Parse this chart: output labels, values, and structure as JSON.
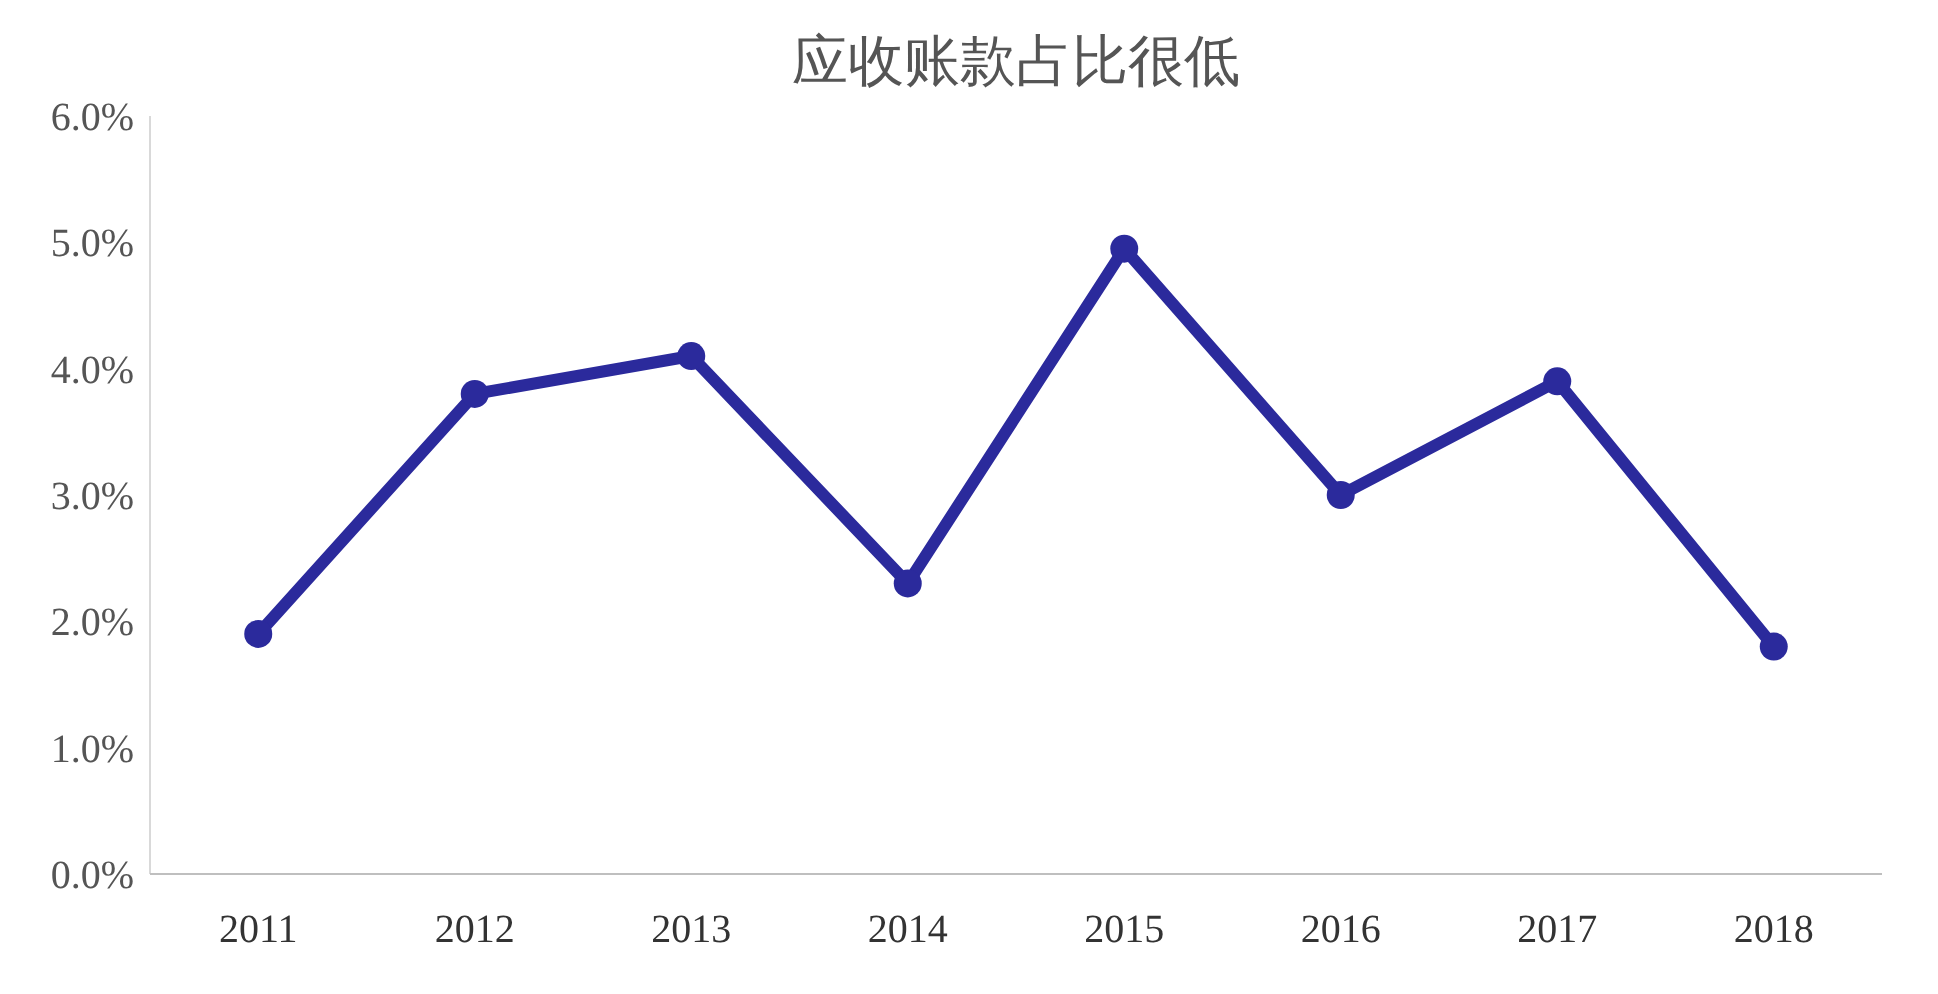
{
  "chart_data": {
    "type": "line",
    "title": "应收账款占比很低",
    "categories": [
      "2011",
      "2012",
      "2013",
      "2014",
      "2015",
      "2016",
      "2017",
      "2018"
    ],
    "series": [
      {
        "color": "#2b2a9c",
        "values": [
          1.9,
          3.8,
          4.1,
          2.3,
          4.95,
          3.0,
          3.9,
          1.8
        ]
      }
    ],
    "ylim": [
      0,
      6
    ],
    "yticks": [
      {
        "value": 0,
        "label": "0.0%"
      },
      {
        "value": 1,
        "label": "1.0%"
      },
      {
        "value": 2,
        "label": "2.0%"
      },
      {
        "value": 3,
        "label": "3.0%"
      },
      {
        "value": 4,
        "label": "4.0%"
      },
      {
        "value": 5,
        "label": "5.0%"
      },
      {
        "value": 6,
        "label": "6.0%"
      }
    ],
    "grid": false,
    "marker": "circle",
    "line_style": "solid"
  }
}
